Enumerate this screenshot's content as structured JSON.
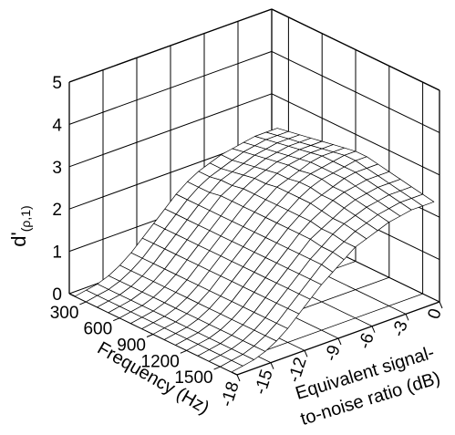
{
  "chart_data": {
    "type": "surface",
    "title": "",
    "zlabel_main": "d'",
    "zlabel_sub": "(ρ,1)",
    "xlabel": "Frequency (Hz)",
    "ylabel_line1": "Equivalent signal-",
    "ylabel_line2": "to-noise ratio (dB)",
    "x_ticks": [
      "300",
      "600",
      "900",
      "1200",
      "1500"
    ],
    "y_ticks": [
      "-18",
      "-15",
      "-12",
      "-9",
      "-6",
      "-3",
      "0"
    ],
    "z_ticks": [
      "0",
      "1",
      "2",
      "3",
      "4",
      "5"
    ],
    "xlim": [
      150,
      1650
    ],
    "ylim": [
      -18,
      0
    ],
    "zlim": [
      0,
      5
    ],
    "grid": true,
    "frequency_hz": [
      200,
      300,
      400,
      500,
      600,
      700,
      800,
      900,
      1000,
      1100,
      1200,
      1300,
      1400,
      1500,
      1600
    ],
    "snr_db": [
      -18,
      -17,
      -16,
      -15,
      -14,
      -13,
      -12,
      -11,
      -10,
      -9,
      -8,
      -7,
      -6,
      -5,
      -4,
      -3,
      -2,
      -1,
      0
    ],
    "d_prime": [
      [
        0.0,
        0.05,
        0.1,
        0.2,
        0.35,
        0.55,
        0.8,
        1.05,
        1.3,
        1.55,
        1.75,
        1.9,
        2.0,
        2.1,
        2.15,
        2.2,
        2.25,
        2.25,
        2.25
      ],
      [
        0.0,
        0.05,
        0.1,
        0.2,
        0.35,
        0.55,
        0.8,
        1.05,
        1.3,
        1.55,
        1.75,
        1.9,
        2.0,
        2.1,
        2.2,
        2.25,
        2.3,
        2.3,
        2.3
      ],
      [
        0.0,
        0.05,
        0.1,
        0.2,
        0.35,
        0.55,
        0.8,
        1.05,
        1.3,
        1.55,
        1.75,
        1.95,
        2.05,
        2.15,
        2.25,
        2.3,
        2.35,
        2.35,
        2.35
      ],
      [
        0.0,
        0.05,
        0.1,
        0.2,
        0.35,
        0.55,
        0.8,
        1.05,
        1.3,
        1.55,
        1.8,
        1.95,
        2.1,
        2.2,
        2.3,
        2.35,
        2.4,
        2.4,
        2.4
      ],
      [
        0.0,
        0.05,
        0.1,
        0.2,
        0.35,
        0.55,
        0.8,
        1.05,
        1.3,
        1.55,
        1.8,
        2.0,
        2.15,
        2.25,
        2.35,
        2.4,
        2.45,
        2.45,
        2.45
      ],
      [
        0.0,
        0.05,
        0.1,
        0.2,
        0.35,
        0.55,
        0.8,
        1.05,
        1.3,
        1.55,
        1.8,
        2.0,
        2.15,
        2.3,
        2.4,
        2.45,
        2.5,
        2.5,
        2.5
      ],
      [
        0.0,
        0.05,
        0.1,
        0.2,
        0.35,
        0.55,
        0.8,
        1.05,
        1.3,
        1.55,
        1.8,
        2.0,
        2.2,
        2.3,
        2.4,
        2.5,
        2.55,
        2.55,
        2.55
      ],
      [
        0.0,
        0.05,
        0.1,
        0.2,
        0.35,
        0.55,
        0.8,
        1.05,
        1.3,
        1.55,
        1.8,
        2.0,
        2.2,
        2.35,
        2.45,
        2.5,
        2.55,
        2.6,
        2.6
      ],
      [
        0.0,
        0.05,
        0.1,
        0.2,
        0.35,
        0.55,
        0.8,
        1.05,
        1.3,
        1.55,
        1.8,
        2.0,
        2.2,
        2.35,
        2.45,
        2.5,
        2.55,
        2.6,
        2.6
      ],
      [
        0.0,
        0.05,
        0.1,
        0.2,
        0.35,
        0.55,
        0.8,
        1.05,
        1.3,
        1.55,
        1.8,
        2.0,
        2.2,
        2.3,
        2.4,
        2.5,
        2.55,
        2.55,
        2.55
      ],
      [
        0.0,
        0.05,
        0.1,
        0.2,
        0.35,
        0.55,
        0.8,
        1.05,
        1.3,
        1.55,
        1.8,
        2.0,
        2.15,
        2.3,
        2.4,
        2.45,
        2.5,
        2.5,
        2.5
      ],
      [
        0.0,
        0.05,
        0.1,
        0.2,
        0.35,
        0.55,
        0.8,
        1.05,
        1.3,
        1.55,
        1.8,
        1.95,
        2.1,
        2.25,
        2.35,
        2.4,
        2.45,
        2.45,
        2.45
      ],
      [
        0.0,
        0.05,
        0.1,
        0.2,
        0.35,
        0.55,
        0.8,
        1.05,
        1.3,
        1.55,
        1.75,
        1.95,
        2.1,
        2.2,
        2.3,
        2.35,
        2.4,
        2.4,
        2.4
      ],
      [
        0.0,
        0.05,
        0.1,
        0.2,
        0.35,
        0.55,
        0.8,
        1.05,
        1.3,
        1.55,
        1.75,
        1.9,
        2.05,
        2.15,
        2.25,
        2.3,
        2.35,
        2.35,
        2.35
      ],
      [
        0.0,
        0.05,
        0.1,
        0.2,
        0.35,
        0.55,
        0.8,
        1.05,
        1.3,
        1.5,
        1.7,
        1.9,
        2.0,
        2.1,
        2.2,
        2.25,
        2.3,
        2.3,
        2.3
      ]
    ]
  }
}
